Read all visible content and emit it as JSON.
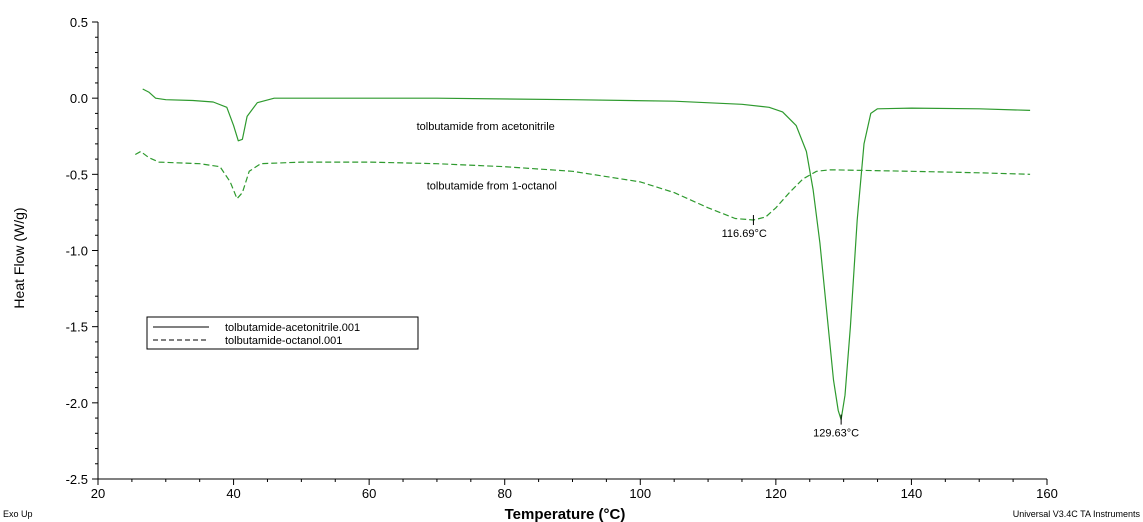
{
  "chart_data": {
    "type": "line",
    "xlabel": "Temperature (°C)",
    "ylabel": "Heat Flow (W/g)",
    "xlim": [
      20,
      160
    ],
    "ylim": [
      -2.5,
      0.5
    ],
    "x_ticks": [
      20,
      40,
      60,
      80,
      100,
      120,
      140,
      160
    ],
    "y_ticks": [
      0.5,
      0.0,
      -0.5,
      -1.0,
      -1.5,
      -2.0,
      -2.5
    ],
    "x_tick_labels": [
      "20",
      "40",
      "60",
      "80",
      "100",
      "120",
      "140",
      "160"
    ],
    "y_tick_labels": [
      "0.5",
      "0.0",
      "-0.5",
      "-1.0",
      "-1.5",
      "-2.0",
      "-2.5"
    ],
    "grid": false,
    "legend_position": "lower-left",
    "series_color": "#2e9a2e",
    "series": [
      {
        "name": "tolbutamide-acetonitrile.001",
        "style": "solid",
        "points": [
          [
            26.6,
            0.06
          ],
          [
            27.5,
            0.04
          ],
          [
            28.5,
            0.0
          ],
          [
            30,
            -0.01
          ],
          [
            34,
            -0.015
          ],
          [
            37,
            -0.025
          ],
          [
            39,
            -0.06
          ],
          [
            40,
            -0.18
          ],
          [
            40.7,
            -0.28
          ],
          [
            41.3,
            -0.27
          ],
          [
            42,
            -0.12
          ],
          [
            43.5,
            -0.03
          ],
          [
            46,
            0.0
          ],
          [
            55,
            0.0
          ],
          [
            70,
            0.0
          ],
          [
            90,
            -0.01
          ],
          [
            105,
            -0.02
          ],
          [
            115,
            -0.04
          ],
          [
            119,
            -0.06
          ],
          [
            121,
            -0.09
          ],
          [
            123,
            -0.18
          ],
          [
            124.5,
            -0.35
          ],
          [
            125.5,
            -0.6
          ],
          [
            126.5,
            -0.95
          ],
          [
            127.5,
            -1.4
          ],
          [
            128.5,
            -1.85
          ],
          [
            129.2,
            -2.05
          ],
          [
            129.63,
            -2.11
          ],
          [
            130.2,
            -1.95
          ],
          [
            131,
            -1.5
          ],
          [
            132,
            -0.8
          ],
          [
            133,
            -0.3
          ],
          [
            134,
            -0.1
          ],
          [
            135,
            -0.07
          ],
          [
            140,
            -0.065
          ],
          [
            150,
            -0.07
          ],
          [
            157.5,
            -0.08
          ]
        ]
      },
      {
        "name": "tolbutamide-octanol.001",
        "style": "dashed",
        "points": [
          [
            25.5,
            -0.37
          ],
          [
            26.3,
            -0.35
          ],
          [
            27.5,
            -0.39
          ],
          [
            29,
            -0.42
          ],
          [
            35,
            -0.43
          ],
          [
            38,
            -0.45
          ],
          [
            39.5,
            -0.55
          ],
          [
            40.5,
            -0.66
          ],
          [
            41.3,
            -0.62
          ],
          [
            42.3,
            -0.48
          ],
          [
            44,
            -0.43
          ],
          [
            50,
            -0.42
          ],
          [
            60,
            -0.42
          ],
          [
            70,
            -0.43
          ],
          [
            80,
            -0.45
          ],
          [
            90,
            -0.48
          ],
          [
            100,
            -0.55
          ],
          [
            105,
            -0.62
          ],
          [
            110,
            -0.72
          ],
          [
            114,
            -0.79
          ],
          [
            116.69,
            -0.8
          ],
          [
            118.5,
            -0.78
          ],
          [
            120,
            -0.72
          ],
          [
            122,
            -0.62
          ],
          [
            124,
            -0.53
          ],
          [
            126,
            -0.48
          ],
          [
            128,
            -0.47
          ],
          [
            140,
            -0.48
          ],
          [
            150,
            -0.49
          ],
          [
            157.5,
            -0.5
          ]
        ]
      }
    ],
    "annotations": [
      {
        "text": "tolbutamide from acetonitrile",
        "x": 67,
        "y": -0.21
      },
      {
        "text": "tolbutamide from 1-octanol",
        "x": 68.5,
        "y": -0.6
      },
      {
        "text": "116.69°C",
        "x": 112,
        "y": -0.91,
        "mark_x": 116.69,
        "mark_y": -0.8
      },
      {
        "text": "129.63°C",
        "x": 125.5,
        "y": -2.22,
        "mark_x": 129.63,
        "mark_y": -2.11
      }
    ],
    "corner_left": "Exo Up",
    "corner_right": "Universal V3.4C TA Instruments"
  }
}
